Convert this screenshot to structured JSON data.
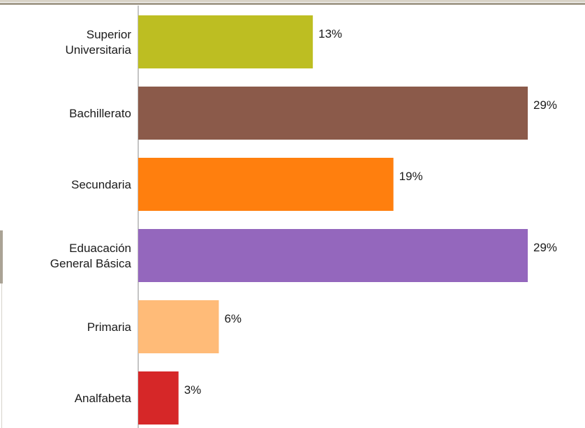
{
  "chart_data": {
    "type": "bar",
    "orientation": "horizontal",
    "categories": [
      [
        "Superior",
        "Universitaria"
      ],
      [
        "Bachillerato"
      ],
      [
        "Secundaria"
      ],
      [
        "Eduacación",
        "General Básica"
      ],
      [
        "Primaria"
      ],
      [
        "Analfabeta"
      ]
    ],
    "values": [
      13,
      29,
      19,
      29,
      6,
      3
    ],
    "value_labels": [
      "13%",
      "29%",
      "19%",
      "29%",
      "6%",
      "3%"
    ],
    "colors": [
      "#bdbe22",
      "#8b5a4a",
      "#ff7f0e",
      "#9467bd",
      "#ffbb78",
      "#d62728"
    ],
    "xlim": [
      0,
      29
    ],
    "title": "",
    "xlabel": "",
    "ylabel": "",
    "grid": false,
    "legend": "none"
  }
}
